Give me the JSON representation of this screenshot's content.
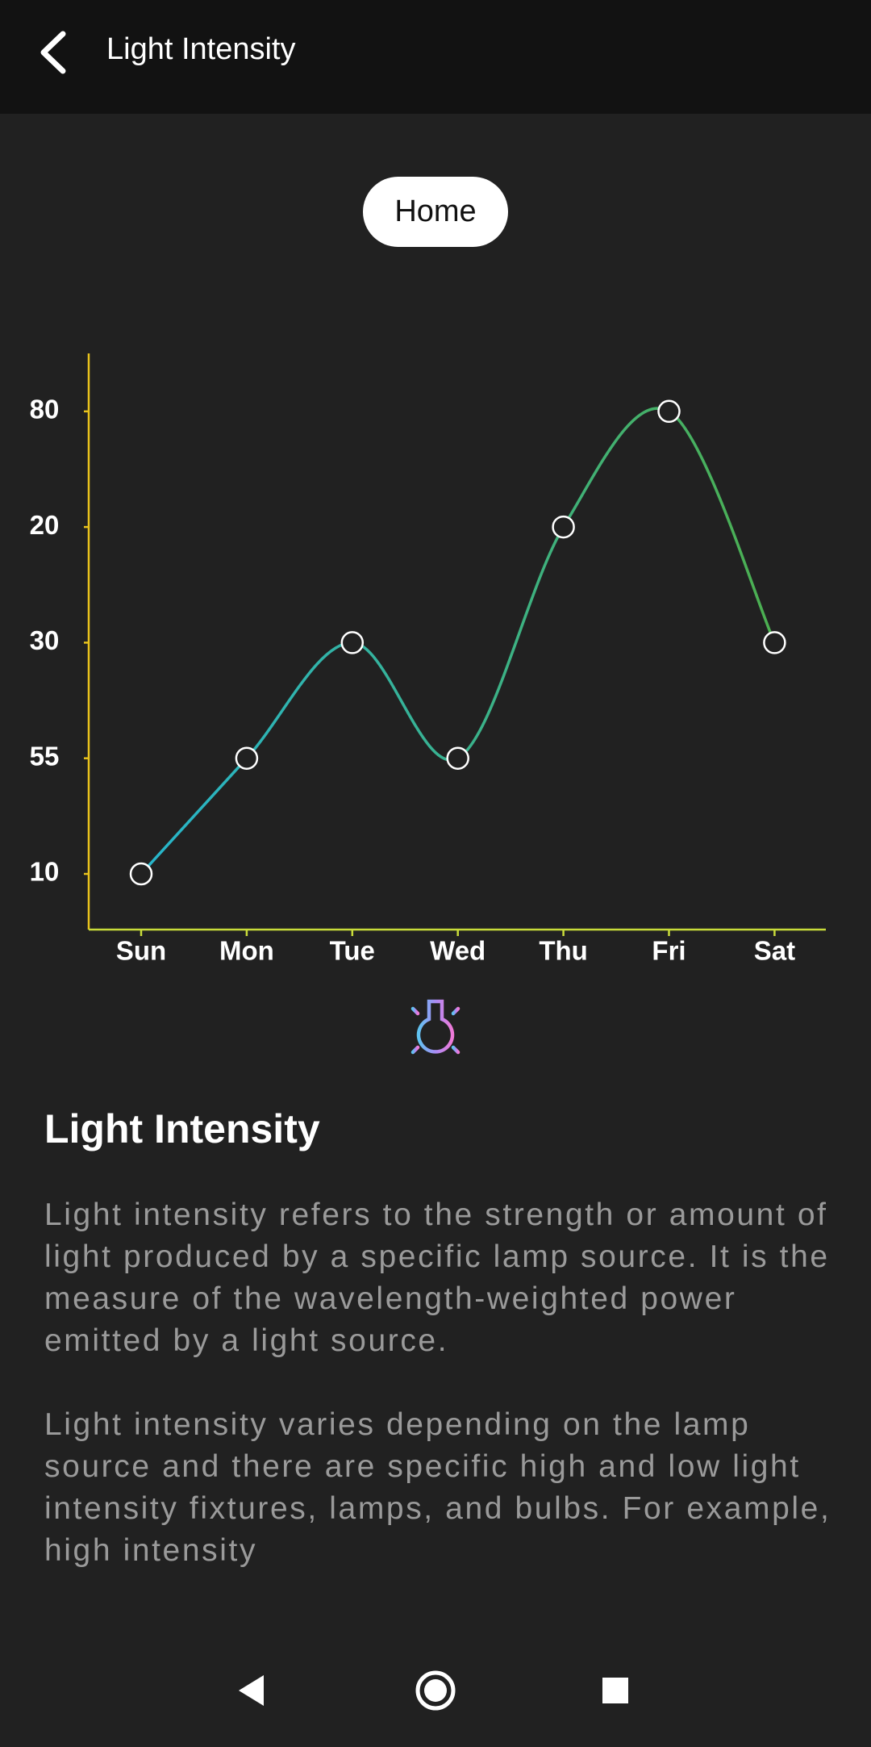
{
  "header": {
    "title": "Light Intensity"
  },
  "tab": "Home",
  "chart_data": {
    "type": "line",
    "categories": [
      "Sun",
      "Mon",
      "Tue",
      "Wed",
      "Thu",
      "Fri",
      "Sat"
    ],
    "values": [
      10,
      55,
      30,
      55,
      20,
      80,
      30
    ],
    "ycategories": [
      10,
      55,
      30,
      20,
      80
    ],
    "colors": [
      "#27b5cc",
      "#4caf50"
    ]
  },
  "section": {
    "title": "Light Intensity",
    "paragraphs": [
      "Light intensity refers to the strength or amount of light produced by a specific lamp source. It is the measure of the wavelength-weighted power emitted by a light source.",
      "Light intensity varies depending on the lamp source and there are specific high and low light intensity fixtures, lamps, and bulbs. For example, high intensity"
    ]
  }
}
